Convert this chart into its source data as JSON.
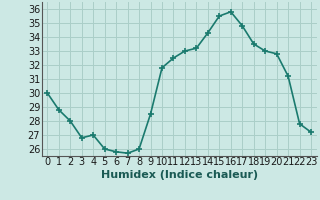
{
  "x": [
    0,
    1,
    2,
    3,
    4,
    5,
    6,
    7,
    8,
    9,
    10,
    11,
    12,
    13,
    14,
    15,
    16,
    17,
    18,
    19,
    20,
    21,
    22,
    23
  ],
  "y": [
    30,
    28.8,
    28.0,
    26.8,
    27.0,
    26.0,
    25.8,
    25.7,
    26.0,
    28.5,
    31.8,
    32.5,
    33.0,
    33.2,
    34.3,
    35.5,
    35.8,
    34.8,
    33.5,
    33.0,
    32.8,
    31.2,
    27.8,
    27.2
  ],
  "line_color": "#1a7a6e",
  "marker": "+",
  "marker_size": 4,
  "bg_color": "#cce8e4",
  "grid_color": "#aacec8",
  "xlabel": "Humidex (Indice chaleur)",
  "ylim": [
    25.5,
    36.5
  ],
  "xlim": [
    -0.5,
    23.5
  ],
  "yticks": [
    26,
    27,
    28,
    29,
    30,
    31,
    32,
    33,
    34,
    35,
    36
  ],
  "xticks": [
    0,
    1,
    2,
    3,
    4,
    5,
    6,
    7,
    8,
    9,
    10,
    11,
    12,
    13,
    14,
    15,
    16,
    17,
    18,
    19,
    20,
    21,
    22,
    23
  ],
  "xlabel_fontsize": 8,
  "tick_fontsize": 7,
  "line_width": 1.2,
  "marker_color": "#1a7a6e"
}
